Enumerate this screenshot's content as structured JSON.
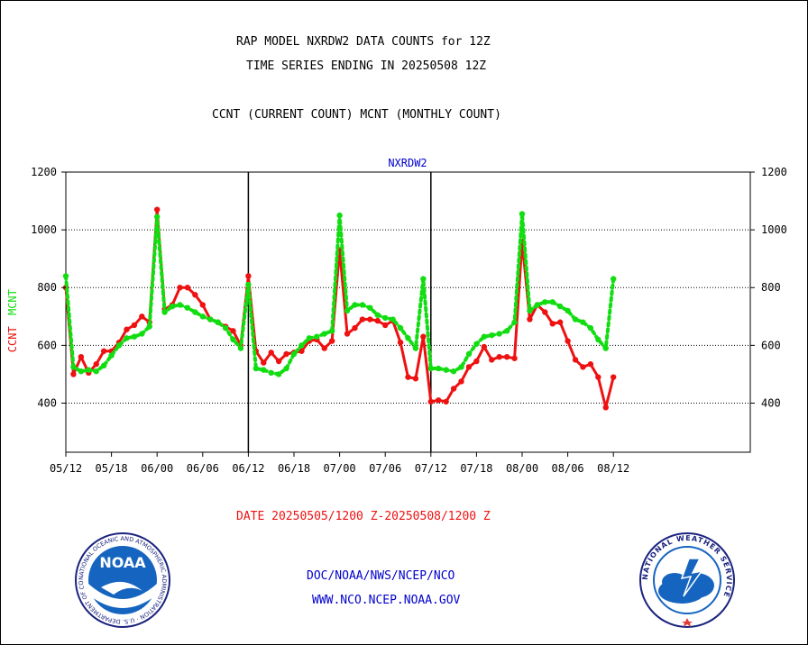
{
  "header": {
    "title_line1": "RAP MODEL NXRDW2 DATA COUNTS for 12Z",
    "title_line2": "TIME SERIES ENDING IN 20250508 12Z",
    "subtitle": "CCNT (CURRENT COUNT) MCNT (MONTHLY COUNT)"
  },
  "footer": {
    "date_range": "DATE 20250505/1200 Z-20250508/1200 Z",
    "org_line": "DOC/NOAA/NWS/NCEP/NCO",
    "website": "WWW.NCO.NCEP.NOAA.GOV"
  },
  "logos": {
    "noaa": {
      "text": "NOAA",
      "ring_text": "NATIONAL OCEANIC AND ATMOSPHERIC ADMINISTRATION · U.S. DEPARTMENT OF COMMERCE ·"
    },
    "nws": {
      "ring_text": "NATIONAL WEATHER SERVICE"
    }
  },
  "colors": {
    "ccnt": "#ee1111",
    "mcnt": "#11dd11",
    "panel_title": "#0000cc",
    "footer_link": "#0000cc",
    "date_text": "#ee1111"
  },
  "chart_data": {
    "type": "line",
    "panel_title": "NXRDW2",
    "ylabel_parts": [
      {
        "text": "CCNT",
        "color": "#ee1111"
      },
      {
        "text": "MCNT",
        "color": "#11dd11"
      }
    ],
    "ylim": [
      230,
      1200
    ],
    "yticks": [
      400,
      600,
      800,
      1000,
      1200
    ],
    "grid_y": [
      400,
      600,
      800,
      1000
    ],
    "grid": true,
    "xlim": [
      0,
      90
    ],
    "xticks": [
      {
        "x": 0,
        "label": "05/12"
      },
      {
        "x": 6,
        "label": "05/18"
      },
      {
        "x": 12,
        "label": "06/00"
      },
      {
        "x": 18,
        "label": "06/06"
      },
      {
        "x": 24,
        "label": "06/12"
      },
      {
        "x": 30,
        "label": "06/18"
      },
      {
        "x": 36,
        "label": "07/00"
      },
      {
        "x": 42,
        "label": "07/06"
      },
      {
        "x": 48,
        "label": "07/12"
      },
      {
        "x": 54,
        "label": "07/18"
      },
      {
        "x": 60,
        "label": "08/00"
      },
      {
        "x": 66,
        "label": "08/06"
      },
      {
        "x": 72,
        "label": "08/12"
      }
    ],
    "day_separators": [
      24,
      48
    ],
    "series": [
      {
        "name": "CCNT",
        "color": "#ee1111",
        "x": [
          0,
          1,
          2,
          3,
          4,
          5,
          6,
          7,
          8,
          9,
          10,
          11,
          12,
          13,
          14,
          15,
          16,
          17,
          18,
          19,
          20,
          21,
          22,
          23,
          24,
          25,
          26,
          27,
          28,
          29,
          30,
          31,
          32,
          33,
          34,
          35,
          36,
          37,
          38,
          39,
          40,
          41,
          42,
          43,
          44,
          45,
          46,
          47,
          48,
          49,
          50,
          51,
          52,
          53,
          54,
          55,
          56,
          57,
          58,
          59,
          60,
          61,
          62,
          63,
          64,
          65,
          66,
          67,
          68,
          69,
          70,
          71,
          72
        ],
        "values": [
          800,
          500,
          560,
          505,
          535,
          580,
          580,
          610,
          655,
          670,
          700,
          680,
          1070,
          725,
          740,
          800,
          800,
          775,
          740,
          690,
          680,
          665,
          650,
          600,
          840,
          580,
          540,
          575,
          545,
          570,
          575,
          580,
          615,
          620,
          590,
          615,
          930,
          640,
          660,
          690,
          690,
          685,
          670,
          685,
          610,
          490,
          485,
          630,
          405,
          410,
          405,
          450,
          475,
          525,
          545,
          595,
          550,
          560,
          560,
          555,
          960,
          690,
          740,
          715,
          675,
          680,
          615,
          550,
          525,
          535,
          490,
          385,
          490
        ]
      },
      {
        "name": "MCNT",
        "color": "#11dd11",
        "x": [
          0,
          1,
          2,
          3,
          4,
          5,
          6,
          7,
          8,
          9,
          10,
          11,
          12,
          13,
          14,
          15,
          16,
          17,
          18,
          19,
          20,
          21,
          22,
          23,
          24,
          25,
          26,
          27,
          28,
          29,
          30,
          31,
          32,
          33,
          34,
          35,
          36,
          37,
          38,
          39,
          40,
          41,
          42,
          43,
          44,
          45,
          46,
          47,
          48,
          49,
          50,
          51,
          52,
          53,
          54,
          55,
          56,
          57,
          58,
          59,
          60,
          61,
          62,
          63,
          64,
          65,
          66,
          67,
          68,
          69,
          70,
          71,
          72
        ],
        "values": [
          840,
          525,
          510,
          515,
          510,
          530,
          565,
          600,
          625,
          630,
          640,
          665,
          1045,
          715,
          735,
          740,
          730,
          715,
          700,
          690,
          680,
          660,
          620,
          590,
          810,
          520,
          515,
          505,
          500,
          520,
          570,
          600,
          625,
          630,
          640,
          650,
          1050,
          720,
          740,
          740,
          730,
          705,
          695,
          690,
          660,
          625,
          590,
          830,
          520,
          520,
          515,
          510,
          525,
          570,
          605,
          630,
          635,
          640,
          650,
          680,
          1055,
          720,
          740,
          750,
          750,
          735,
          720,
          690,
          680,
          660,
          620,
          590,
          830
        ]
      }
    ]
  }
}
